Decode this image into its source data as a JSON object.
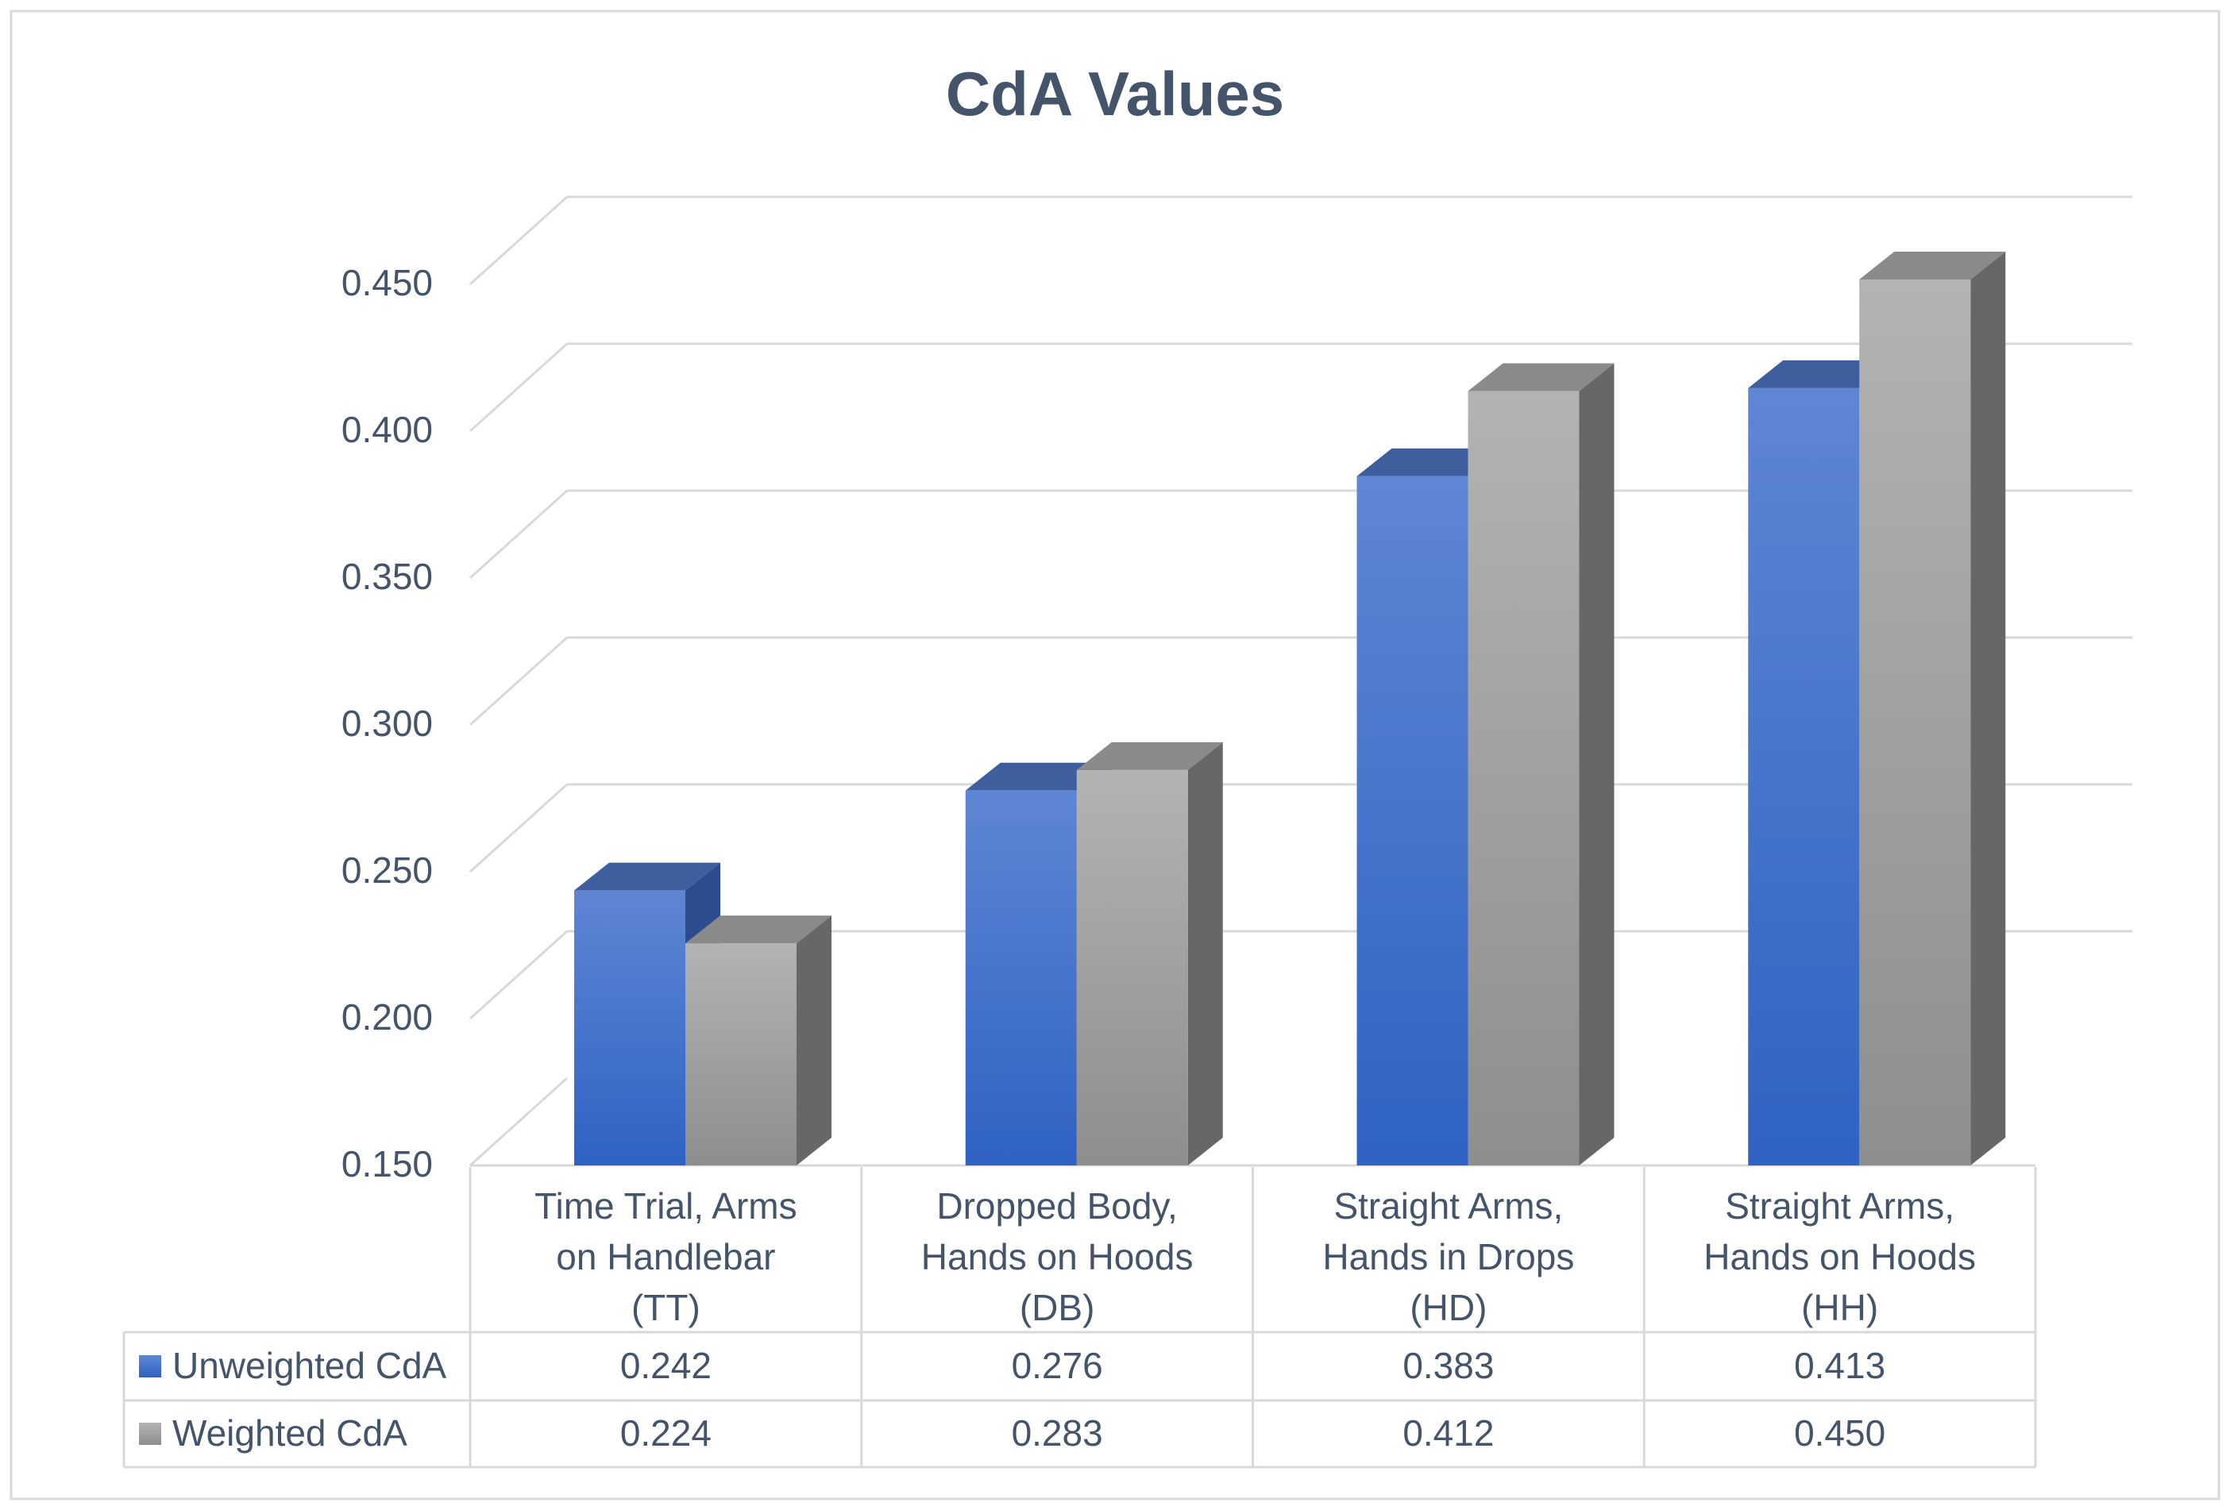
{
  "chart_data": {
    "type": "bar",
    "title": "CdA Values",
    "categories": [
      [
        "Time Trial, Arms",
        "on Handlebar",
        "(TT)"
      ],
      [
        "Dropped Body,",
        "Hands on Hoods",
        "(DB)"
      ],
      [
        "Straight Arms,",
        "Hands in Drops",
        "(HD)"
      ],
      [
        "Straight Arms,",
        "Hands on Hoods",
        "(HH)"
      ]
    ],
    "series": [
      {
        "name": "Unweighted CdA",
        "values": [
          0.242,
          0.276,
          0.383,
          0.413
        ],
        "value_labels": [
          "0.242",
          "0.276",
          "0.383",
          "0.413"
        ],
        "color": "#3f6fd1"
      },
      {
        "name": "Weighted CdA",
        "values": [
          0.224,
          0.283,
          0.412,
          0.45
        ],
        "value_labels": [
          "0.224",
          "0.283",
          "0.412",
          "0.450"
        ],
        "color": "#a6a6a6"
      }
    ],
    "ylim": [
      0.15,
      0.45
    ],
    "yticks": [
      0.15,
      0.2,
      0.25,
      0.3,
      0.35,
      0.4,
      0.45
    ],
    "ytick_labels": [
      "0.150",
      "0.200",
      "0.250",
      "0.300",
      "0.350",
      "0.400",
      "0.450"
    ],
    "grid": true,
    "legend": "data-table",
    "style": "3d-column",
    "xlabel": "",
    "ylabel": ""
  }
}
